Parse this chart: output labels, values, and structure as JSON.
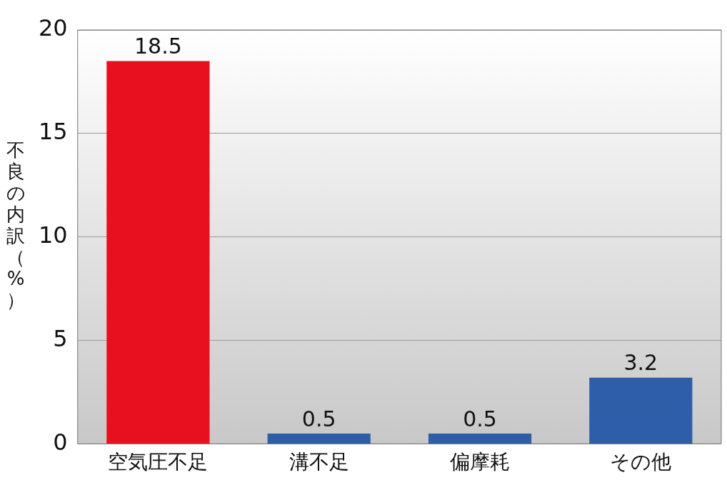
{
  "chart_data": {
    "type": "bar",
    "ylabel": "不良の内訳（%）",
    "categories": [
      "空気圧不足",
      "溝不足",
      "偏摩耗",
      "その他"
    ],
    "values": [
      18.5,
      0.5,
      0.5,
      3.2
    ],
    "colors": [
      "#e8101e",
      "#2f5ea8",
      "#2f5ea8",
      "#2f5ea8"
    ],
    "ylim": [
      0,
      20
    ],
    "yticks": [
      0,
      5,
      10,
      15,
      20
    ],
    "grid": "y",
    "data_labels": true
  }
}
